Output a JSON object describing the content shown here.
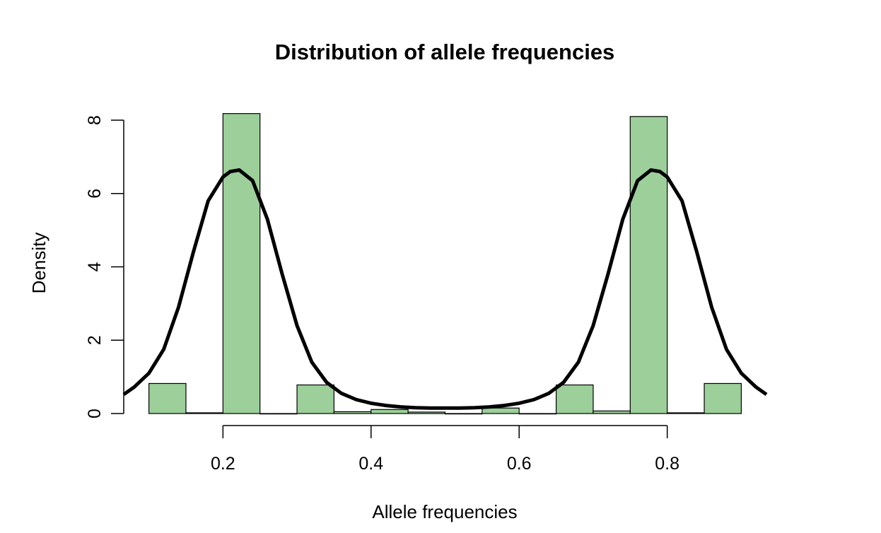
{
  "chart_data": {
    "type": "bar",
    "title": "Distribution of allele frequencies",
    "xlabel": "Allele frequencies",
    "ylabel": "Density",
    "bar_color": "#9ccf9a",
    "curve_color": "#000000",
    "xlim": [
      0.066,
      0.934
    ],
    "ylim": [
      0,
      8
    ],
    "x_ticks": [
      {
        "value": 0.2,
        "label": "0.2"
      },
      {
        "value": 0.4,
        "label": "0.4"
      },
      {
        "value": 0.6,
        "label": "0.6"
      },
      {
        "value": 0.8,
        "label": "0.8"
      }
    ],
    "y_ticks": [
      {
        "value": 0,
        "label": "0"
      },
      {
        "value": 2,
        "label": "2"
      },
      {
        "value": 4,
        "label": "4"
      },
      {
        "value": 6,
        "label": "6"
      },
      {
        "value": 8,
        "label": "8"
      }
    ],
    "bins": [
      {
        "x0": 0.1,
        "x1": 0.15,
        "density": 0.82
      },
      {
        "x0": 0.15,
        "x1": 0.2,
        "density": 0.02
      },
      {
        "x0": 0.2,
        "x1": 0.25,
        "density": 8.18
      },
      {
        "x0": 0.25,
        "x1": 0.3,
        "density": 0.0
      },
      {
        "x0": 0.3,
        "x1": 0.35,
        "density": 0.78
      },
      {
        "x0": 0.35,
        "x1": 0.4,
        "density": 0.05
      },
      {
        "x0": 0.4,
        "x1": 0.45,
        "density": 0.11
      },
      {
        "x0": 0.45,
        "x1": 0.5,
        "density": 0.04
      },
      {
        "x0": 0.5,
        "x1": 0.55,
        "density": 0.0
      },
      {
        "x0": 0.55,
        "x1": 0.6,
        "density": 0.15
      },
      {
        "x0": 0.6,
        "x1": 0.65,
        "density": 0.0
      },
      {
        "x0": 0.65,
        "x1": 0.7,
        "density": 0.78
      },
      {
        "x0": 0.7,
        "x1": 0.75,
        "density": 0.07
      },
      {
        "x0": 0.75,
        "x1": 0.8,
        "density": 8.1
      },
      {
        "x0": 0.8,
        "x1": 0.85,
        "density": 0.02
      },
      {
        "x0": 0.85,
        "x1": 0.9,
        "density": 0.82
      }
    ],
    "density_curve": {
      "x": [
        0.066,
        0.08,
        0.1,
        0.12,
        0.14,
        0.16,
        0.18,
        0.2,
        0.21,
        0.222,
        0.24,
        0.26,
        0.28,
        0.3,
        0.32,
        0.34,
        0.36,
        0.38,
        0.4,
        0.42,
        0.44,
        0.46,
        0.48,
        0.5,
        0.52,
        0.54,
        0.56,
        0.58,
        0.6,
        0.62,
        0.64,
        0.66,
        0.68,
        0.7,
        0.72,
        0.74,
        0.76,
        0.778,
        0.79,
        0.8,
        0.82,
        0.84,
        0.86,
        0.88,
        0.9,
        0.92,
        0.934
      ],
      "y": [
        0.52,
        0.72,
        1.1,
        1.75,
        2.9,
        4.4,
        5.8,
        6.45,
        6.6,
        6.64,
        6.35,
        5.3,
        3.8,
        2.4,
        1.4,
        0.85,
        0.55,
        0.38,
        0.28,
        0.22,
        0.18,
        0.16,
        0.15,
        0.15,
        0.15,
        0.16,
        0.18,
        0.22,
        0.28,
        0.38,
        0.55,
        0.85,
        1.4,
        2.4,
        3.8,
        5.3,
        6.35,
        6.64,
        6.6,
        6.45,
        5.8,
        4.4,
        2.9,
        1.75,
        1.1,
        0.72,
        0.52
      ]
    }
  }
}
